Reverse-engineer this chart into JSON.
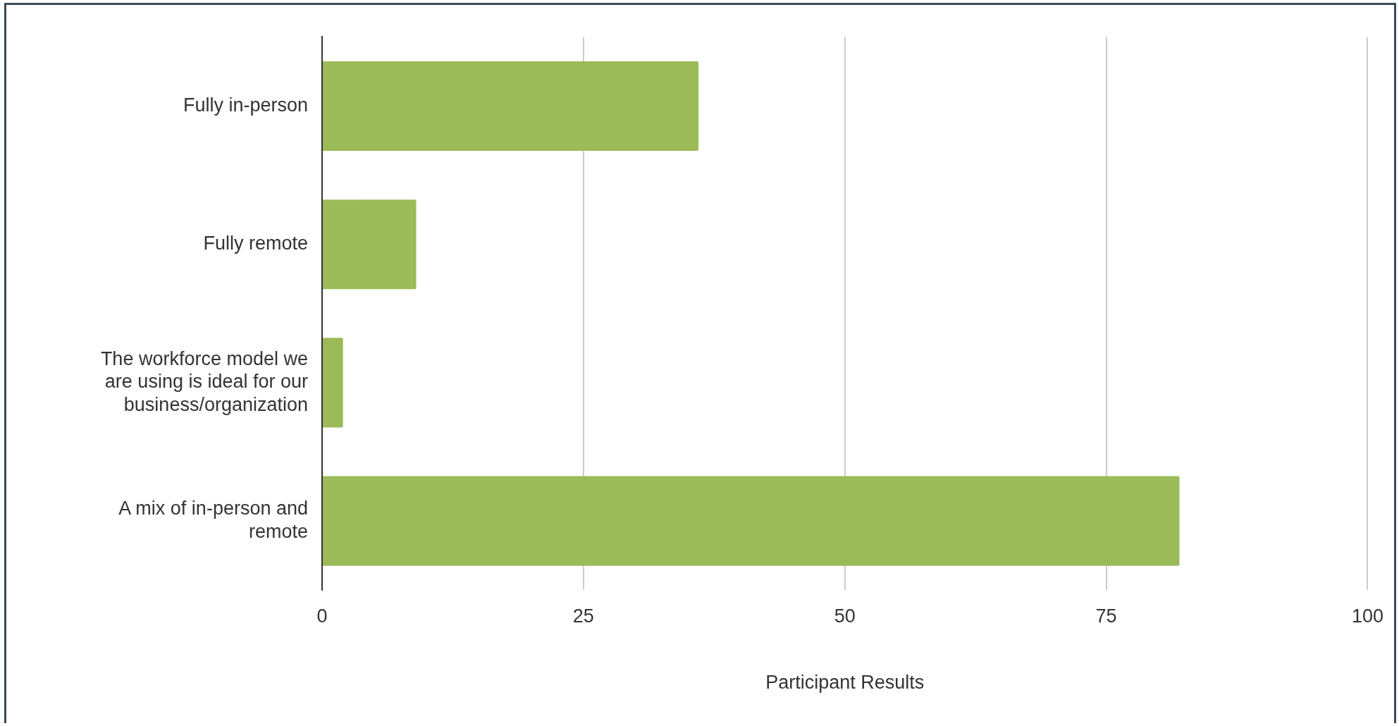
{
  "chart_data": {
    "type": "bar",
    "orientation": "horizontal",
    "xlabel": "Participant Results",
    "categories": [
      "Fully in-person",
      "Fully remote",
      "The workforce model we are using is ideal for our business/organization",
      "A mix of in-person and remote"
    ],
    "values": [
      36,
      9,
      2,
      82
    ],
    "color": "#9bbb59",
    "xlim": [
      0,
      100
    ],
    "xticks": [
      0,
      25,
      50,
      75,
      100
    ],
    "grid": "x",
    "legend": false
  }
}
